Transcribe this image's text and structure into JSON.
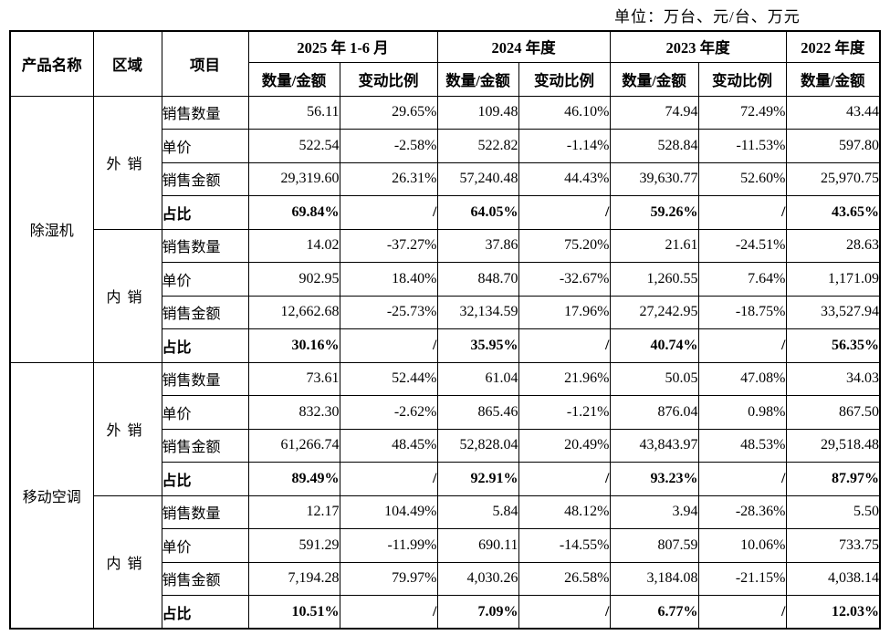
{
  "unit_label": "单位：万台、元/台、万元",
  "table": {
    "headers": {
      "product": "产品名称",
      "region": "区域",
      "item": "项目",
      "periods": [
        {
          "label": "2025 年 1-6 月",
          "cols": [
            "数量/金额",
            "变动比例"
          ]
        },
        {
          "label": "2024 年度",
          "cols": [
            "数量/金额",
            "变动比例"
          ]
        },
        {
          "label": "2023 年度",
          "cols": [
            "数量/金额",
            "变动比例"
          ]
        },
        {
          "label": "2022 年度",
          "cols": [
            "数量/金额"
          ]
        }
      ]
    },
    "groups": [
      {
        "product": "除湿机",
        "regions": [
          {
            "region": "外销",
            "rows": [
              {
                "label": "销售数量",
                "bold": false,
                "values": [
                  "56.11",
                  "29.65%",
                  "109.48",
                  "46.10%",
                  "74.94",
                  "72.49%",
                  "43.44"
                ]
              },
              {
                "label": "单价",
                "bold": false,
                "values": [
                  "522.54",
                  "-2.58%",
                  "522.82",
                  "-1.14%",
                  "528.84",
                  "-11.53%",
                  "597.80"
                ]
              },
              {
                "label": "销售金额",
                "bold": false,
                "values": [
                  "29,319.60",
                  "26.31%",
                  "57,240.48",
                  "44.43%",
                  "39,630.77",
                  "52.60%",
                  "25,970.75"
                ]
              },
              {
                "label": "占比",
                "bold": true,
                "values": [
                  "69.84%",
                  "/",
                  "64.05%",
                  "/",
                  "59.26%",
                  "/",
                  "43.65%"
                ]
              }
            ]
          },
          {
            "region": "内销",
            "rows": [
              {
                "label": "销售数量",
                "bold": false,
                "values": [
                  "14.02",
                  "-37.27%",
                  "37.86",
                  "75.20%",
                  "21.61",
                  "-24.51%",
                  "28.63"
                ]
              },
              {
                "label": "单价",
                "bold": false,
                "values": [
                  "902.95",
                  "18.40%",
                  "848.70",
                  "-32.67%",
                  "1,260.55",
                  "7.64%",
                  "1,171.09"
                ]
              },
              {
                "label": "销售金额",
                "bold": false,
                "values": [
                  "12,662.68",
                  "-25.73%",
                  "32,134.59",
                  "17.96%",
                  "27,242.95",
                  "-18.75%",
                  "33,527.94"
                ]
              },
              {
                "label": "占比",
                "bold": true,
                "values": [
                  "30.16%",
                  "/",
                  "35.95%",
                  "/",
                  "40.74%",
                  "/",
                  "56.35%"
                ]
              }
            ]
          }
        ]
      },
      {
        "product": "移动空调",
        "regions": [
          {
            "region": "外销",
            "rows": [
              {
                "label": "销售数量",
                "bold": false,
                "values": [
                  "73.61",
                  "52.44%",
                  "61.04",
                  "21.96%",
                  "50.05",
                  "47.08%",
                  "34.03"
                ]
              },
              {
                "label": "单价",
                "bold": false,
                "values": [
                  "832.30",
                  "-2.62%",
                  "865.46",
                  "-1.21%",
                  "876.04",
                  "0.98%",
                  "867.50"
                ]
              },
              {
                "label": "销售金额",
                "bold": false,
                "values": [
                  "61,266.74",
                  "48.45%",
                  "52,828.04",
                  "20.49%",
                  "43,843.97",
                  "48.53%",
                  "29,518.48"
                ]
              },
              {
                "label": "占比",
                "bold": true,
                "values": [
                  "89.49%",
                  "/",
                  "92.91%",
                  "/",
                  "93.23%",
                  "/",
                  "87.97%"
                ]
              }
            ]
          },
          {
            "region": "内销",
            "rows": [
              {
                "label": "销售数量",
                "bold": false,
                "values": [
                  "12.17",
                  "104.49%",
                  "5.84",
                  "48.12%",
                  "3.94",
                  "-28.36%",
                  "5.50"
                ]
              },
              {
                "label": "单价",
                "bold": false,
                "values": [
                  "591.29",
                  "-11.99%",
                  "690.11",
                  "-14.55%",
                  "807.59",
                  "10.06%",
                  "733.75"
                ]
              },
              {
                "label": "销售金额",
                "bold": false,
                "values": [
                  "7,194.28",
                  "79.97%",
                  "4,030.26",
                  "26.58%",
                  "3,184.08",
                  "-21.15%",
                  "4,038.14"
                ]
              },
              {
                "label": "占比",
                "bold": true,
                "values": [
                  "10.51%",
                  "/",
                  "7.09%",
                  "/",
                  "6.77%",
                  "/",
                  "12.03%"
                ]
              }
            ]
          }
        ]
      }
    ]
  }
}
